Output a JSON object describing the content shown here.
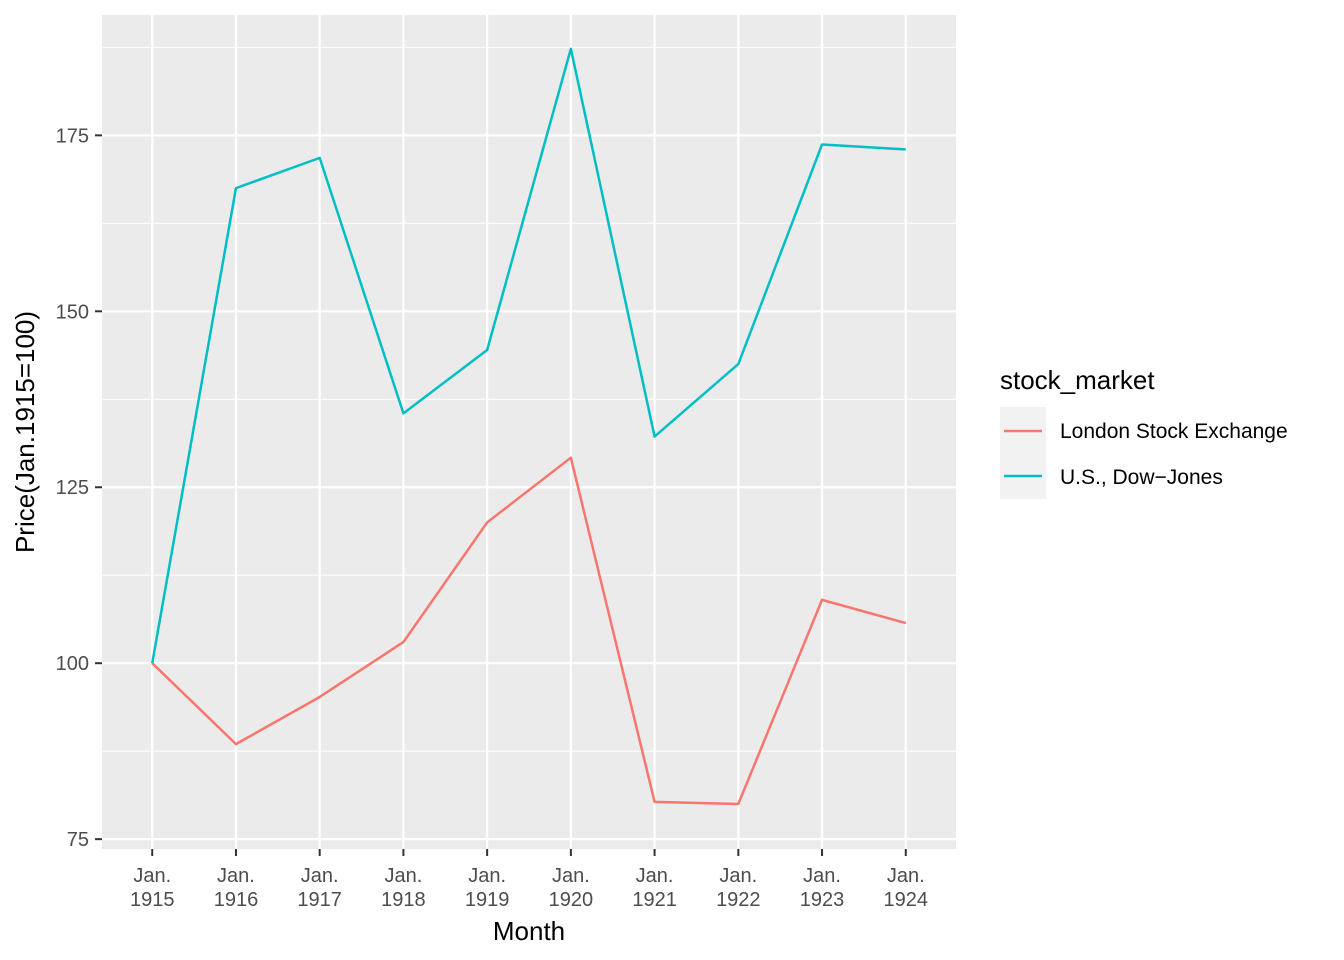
{
  "chart_data": {
    "type": "line",
    "xlabel": "Month",
    "ylabel": "Price(Jan.1915=100)",
    "categories": [
      [
        "Jan.",
        "1915"
      ],
      [
        "Jan.",
        "1916"
      ],
      [
        "Jan.",
        "1917"
      ],
      [
        "Jan.",
        "1918"
      ],
      [
        "Jan.",
        "1919"
      ],
      [
        "Jan.",
        "1920"
      ],
      [
        "Jan.",
        "1921"
      ],
      [
        "Jan.",
        "1922"
      ],
      [
        "Jan.",
        "1923"
      ],
      [
        "Jan.",
        "1924"
      ]
    ],
    "ylim": [
      73.6,
      192.1
    ],
    "yticks": [
      75,
      100,
      125,
      150,
      175
    ],
    "grid": true,
    "legend": {
      "title": "stock_market",
      "position": "right"
    },
    "series": [
      {
        "name": "London Stock Exchange",
        "color": "#F8766D",
        "values": [
          100,
          88.5,
          95.2,
          103,
          120,
          129.2,
          80.3,
          80,
          109,
          105.7
        ]
      },
      {
        "name": "U.S., Dow−Jones",
        "color": "#00BFC4",
        "values": [
          100,
          167.5,
          171.8,
          135.5,
          144.5,
          187.3,
          132.2,
          142.5,
          173.7,
          173
        ]
      }
    ],
    "colors": {
      "panel": "#EBEBEB",
      "grid": "#FFFFFF",
      "legend_key": "#F2F2F2"
    }
  }
}
